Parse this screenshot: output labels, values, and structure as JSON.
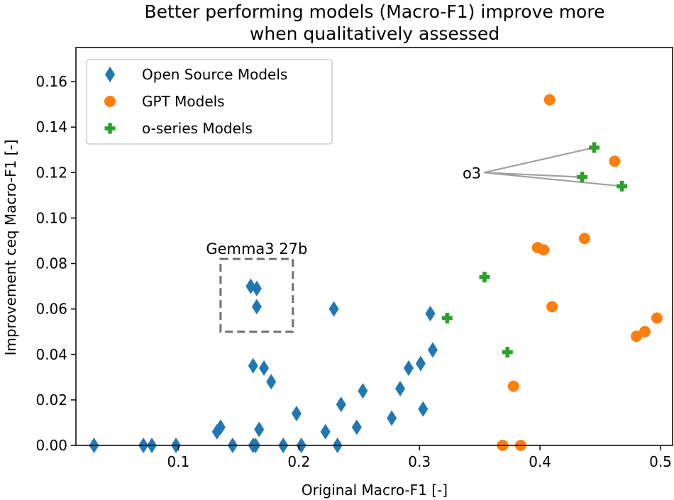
{
  "chart_data": {
    "type": "scatter",
    "title": [
      "Better performing models (Macro-F1) improve more",
      "when qualitatively assessed"
    ],
    "xlabel": "Original Macro-F1 [-]",
    "ylabel": "Improvement ceq Macro-F1 [-]",
    "xlim": [
      0.015,
      0.51
    ],
    "ylim": [
      0.0,
      0.175
    ],
    "xticks": [
      0.1,
      0.2,
      0.3,
      0.4,
      0.5
    ],
    "xtick_labels": [
      "0.1",
      "0.2",
      "0.3",
      "0.4",
      "0.5"
    ],
    "yticks": [
      0.0,
      0.02,
      0.04,
      0.06,
      0.08,
      0.1,
      0.12,
      0.14,
      0.16
    ],
    "ytick_labels": [
      "0.00",
      "0.02",
      "0.04",
      "0.06",
      "0.08",
      "0.10",
      "0.12",
      "0.14",
      "0.16"
    ],
    "grid": false,
    "legend_position": "upper-left",
    "series": [
      {
        "name": "Open Source Models",
        "marker": "diamond",
        "color": "#1f77b4",
        "points": [
          [
            0.03,
            0.0
          ],
          [
            0.071,
            0.0
          ],
          [
            0.078,
            0.0
          ],
          [
            0.098,
            0.0
          ],
          [
            0.132,
            0.006
          ],
          [
            0.135,
            0.008
          ],
          [
            0.145,
            0.0
          ],
          [
            0.162,
            0.0
          ],
          [
            0.164,
            0.0
          ],
          [
            0.167,
            0.007
          ],
          [
            0.187,
            0.0
          ],
          [
            0.202,
            0.0
          ],
          [
            0.198,
            0.014
          ],
          [
            0.222,
            0.006
          ],
          [
            0.232,
            0.0
          ],
          [
            0.235,
            0.018
          ],
          [
            0.248,
            0.008
          ],
          [
            0.253,
            0.024
          ],
          [
            0.277,
            0.012
          ],
          [
            0.284,
            0.025
          ],
          [
            0.291,
            0.034
          ],
          [
            0.301,
            0.036
          ],
          [
            0.303,
            0.016
          ],
          [
            0.311,
            0.042
          ],
          [
            0.309,
            0.058
          ],
          [
            0.229,
            0.06
          ],
          [
            0.16,
            0.07
          ],
          [
            0.165,
            0.069
          ],
          [
            0.165,
            0.061
          ],
          [
            0.162,
            0.035
          ],
          [
            0.171,
            0.034
          ],
          [
            0.177,
            0.028
          ]
        ]
      },
      {
        "name": "GPT Models",
        "marker": "circle",
        "color": "#ff7f0e",
        "points": [
          [
            0.408,
            0.152
          ],
          [
            0.462,
            0.125
          ],
          [
            0.437,
            0.091
          ],
          [
            0.398,
            0.087
          ],
          [
            0.403,
            0.086
          ],
          [
            0.41,
            0.061
          ],
          [
            0.497,
            0.056
          ],
          [
            0.487,
            0.05
          ],
          [
            0.48,
            0.048
          ],
          [
            0.378,
            0.026
          ],
          [
            0.369,
            0.0
          ],
          [
            0.384,
            0.0
          ]
        ]
      },
      {
        "name": "o-series Models",
        "marker": "plus",
        "color": "#2ca02c",
        "points": [
          [
            0.445,
            0.131
          ],
          [
            0.435,
            0.118
          ],
          [
            0.468,
            0.114
          ],
          [
            0.354,
            0.074
          ],
          [
            0.323,
            0.056
          ],
          [
            0.373,
            0.041
          ]
        ]
      }
    ],
    "annotations": [
      {
        "text": "o3",
        "anchor": [
          0.35,
          0.12
        ],
        "targets": [
          [
            0.445,
            0.131
          ],
          [
            0.435,
            0.118
          ],
          [
            0.468,
            0.114
          ]
        ]
      },
      {
        "text": "Gemma3 27b",
        "box": [
          [
            0.135,
            0.05
          ],
          [
            0.195,
            0.082
          ]
        ]
      }
    ]
  }
}
